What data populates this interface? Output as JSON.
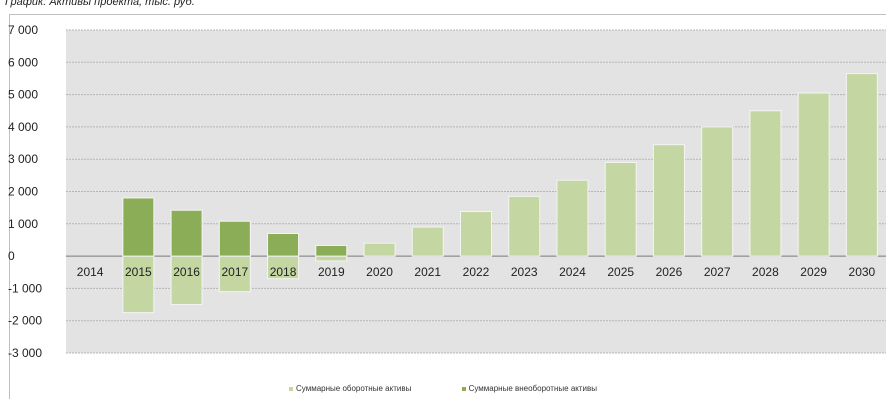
{
  "title": "График: Активы проекта, тыс. руб.",
  "colors": {
    "current_assets": "#c4d6a2",
    "noncurrent_assets": "#8cad57",
    "plot_bg": "#e3e3e3",
    "grid": "#b5b5b5"
  },
  "chart_data": {
    "type": "bar",
    "title": "График: Активы проекта, тыс. руб.",
    "categories": [
      "2014",
      "2015",
      "2016",
      "2017",
      "2018",
      "2019",
      "2020",
      "2021",
      "2022",
      "2023",
      "2024",
      "2025",
      "2026",
      "2027",
      "2028",
      "2029",
      "2030"
    ],
    "series": [
      {
        "name": "Суммарные оборотные активы",
        "values": [
          0,
          -1750,
          -1500,
          -1100,
          -700,
          -150,
          400,
          900,
          1380,
          1850,
          2350,
          2900,
          3450,
          4000,
          4500,
          5050,
          5650
        ]
      },
      {
        "name": "Суммарные внеоборотные активы",
        "values": [
          0,
          1800,
          1420,
          1080,
          700,
          330,
          0,
          0,
          0,
          0,
          0,
          0,
          0,
          0,
          0,
          0,
          0
        ]
      }
    ],
    "ylim": [
      -3000,
      7000
    ],
    "yticks": [
      -3000,
      -2000,
      -1000,
      0,
      1000,
      2000,
      3000,
      4000,
      5000,
      6000,
      7000
    ],
    "ytick_labels": [
      "-3 000",
      "-2 000",
      "-1 000",
      "0",
      "1 000",
      "2 000",
      "3 000",
      "4 000",
      "5 000",
      "6 000",
      "7 000"
    ],
    "grid": true,
    "legend_position": "bottom"
  },
  "legend": [
    {
      "label": "Суммарные оборотные активы"
    },
    {
      "label": "Суммарные внеоборотные активы"
    }
  ]
}
